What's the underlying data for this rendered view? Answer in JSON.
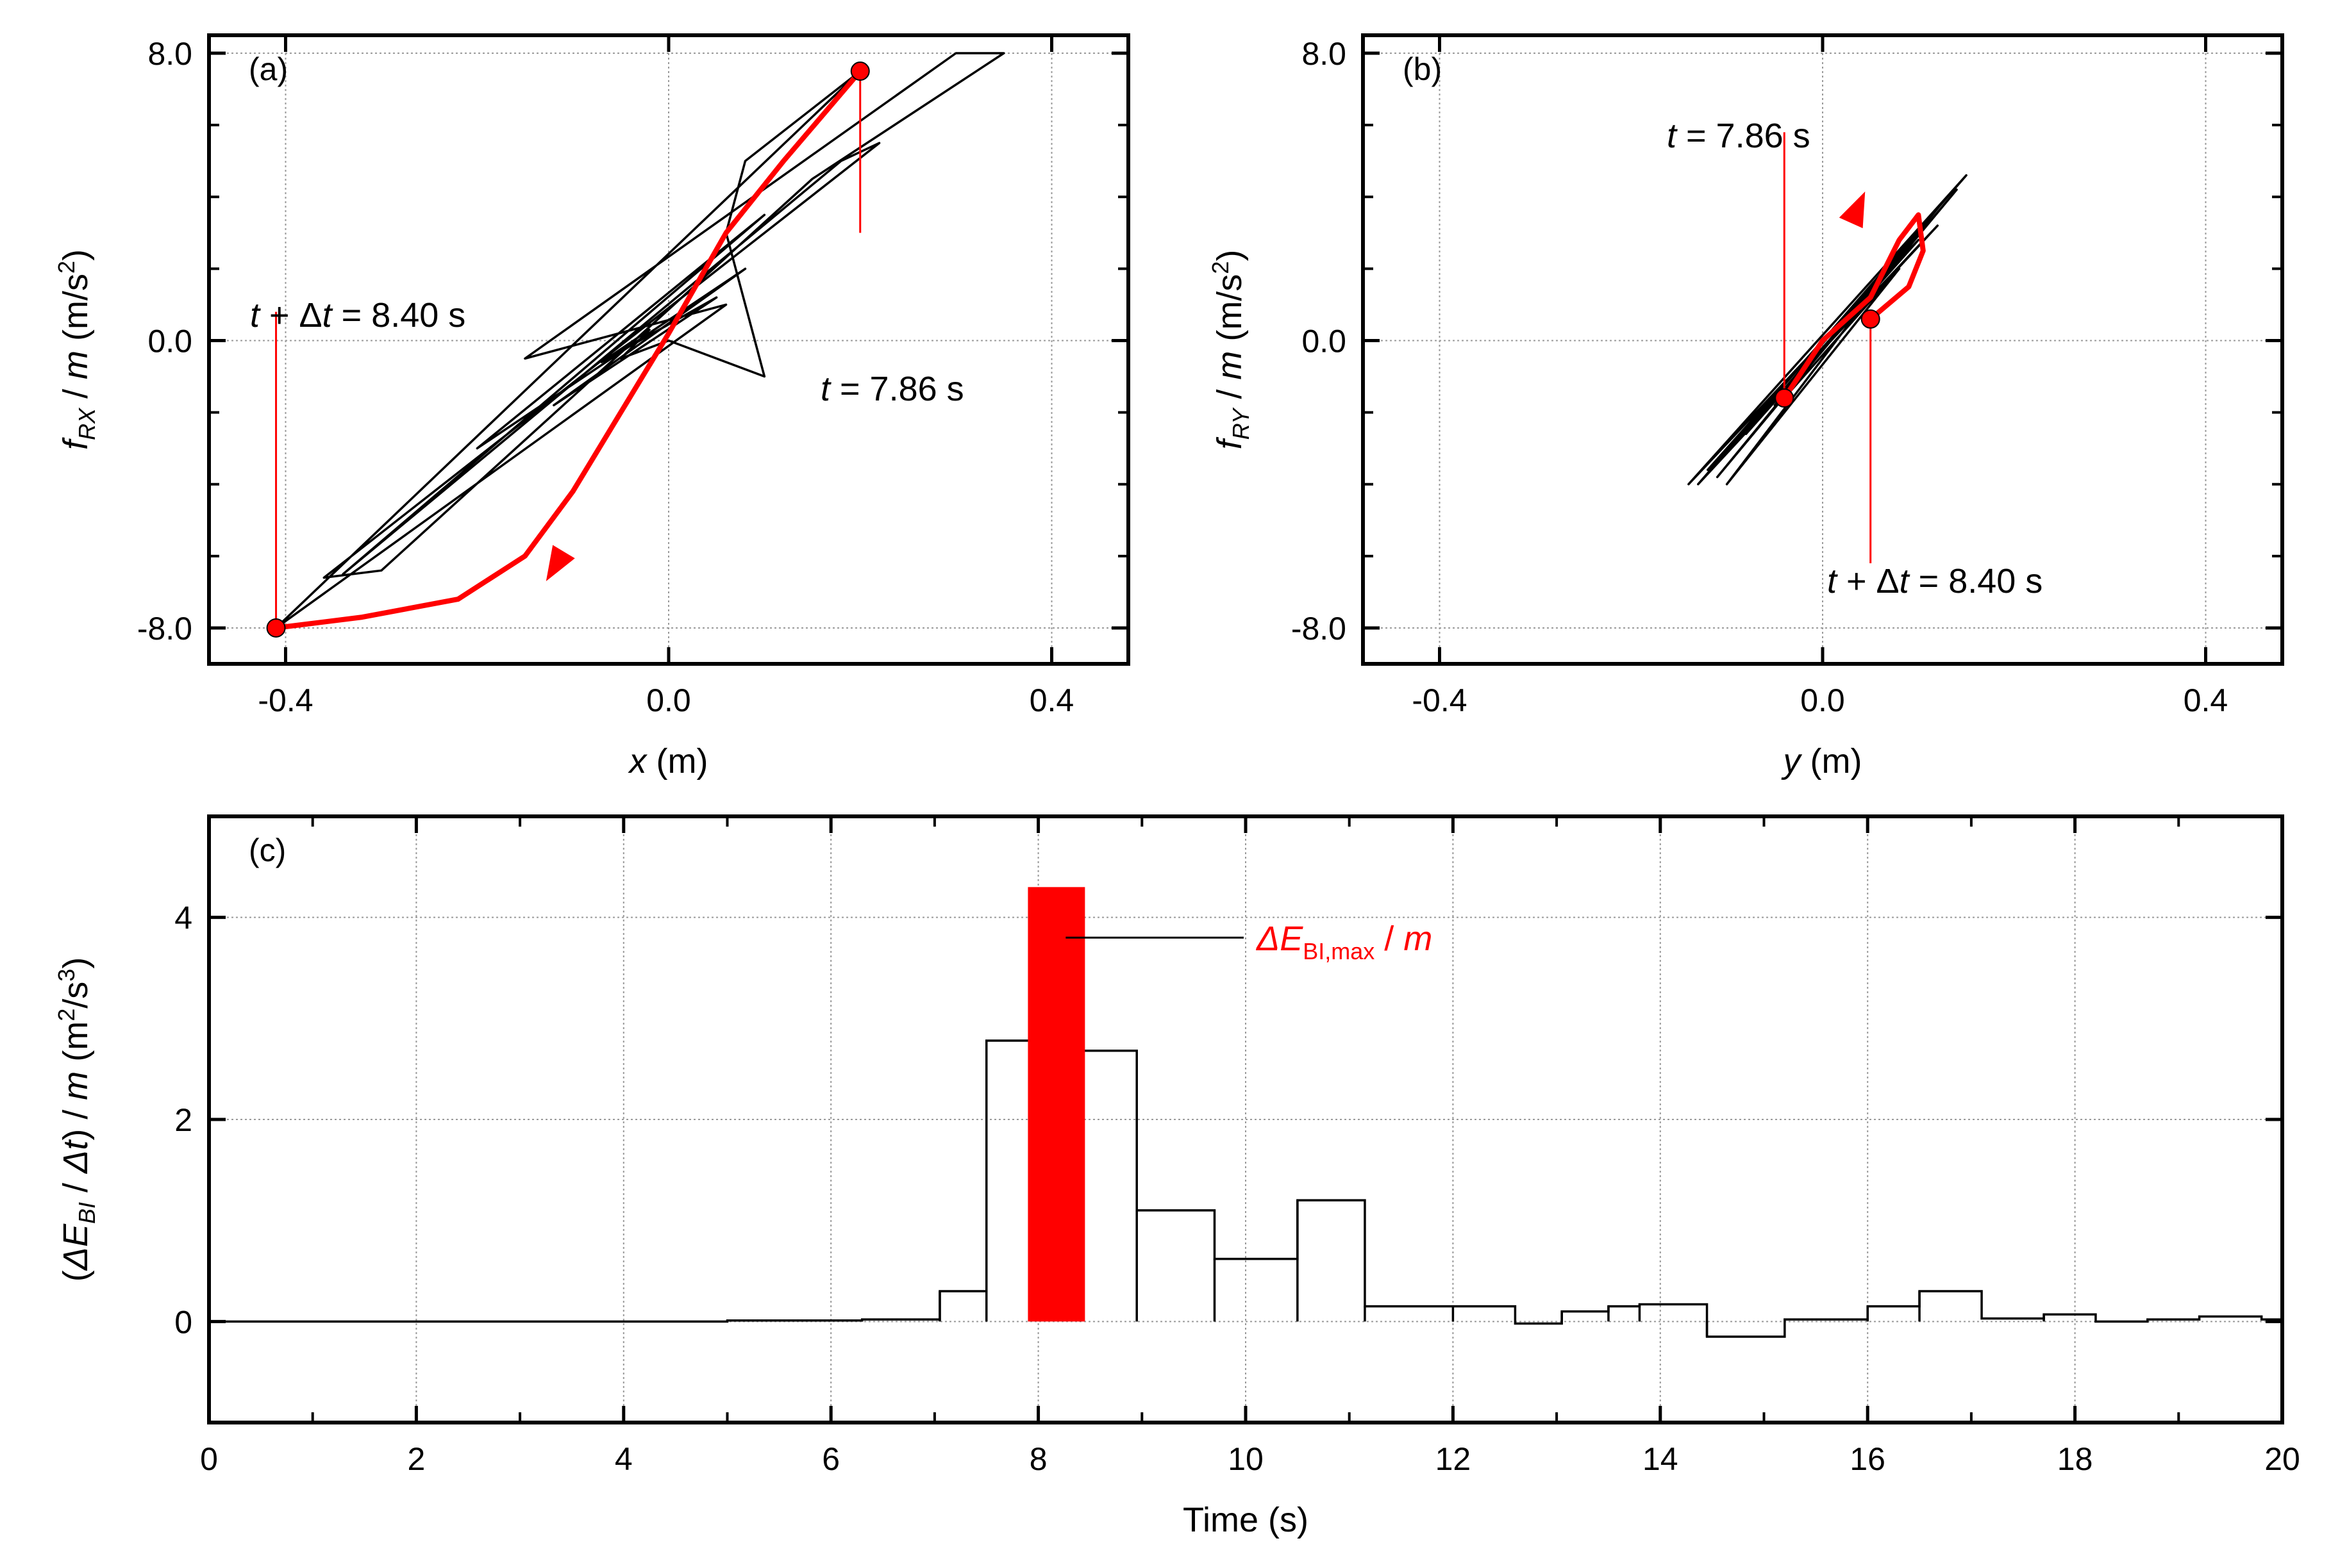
{
  "figure": {
    "panels": [
      "a",
      "b",
      "c"
    ]
  },
  "chart_data": [
    {
      "id": "a",
      "type": "line",
      "panel_label": "(a)",
      "xlabel": {
        "var": "x",
        "unit": " (m)"
      },
      "ylabel": {
        "var": "f",
        "sub": "RX",
        "mid": " / ",
        "var2": "m",
        "unit": " (m/s",
        "sup": "2",
        "end": ")"
      },
      "xlim": [
        -0.48,
        0.48
      ],
      "ylim": [
        -9.0,
        8.5
      ],
      "xticks": [
        -0.4,
        0.0,
        0.4
      ],
      "xtick_labels": [
        "-0.4",
        "0.0",
        "0.4"
      ],
      "yticks": [
        -8.0,
        0.0,
        8.0
      ],
      "ytick_labels": [
        "-8.0",
        "0.0",
        "8.0"
      ],
      "minor_yticks": [
        -6,
        -4,
        -2,
        2,
        4,
        6
      ],
      "grid": true,
      "series": [
        {
          "name": "hysteresis",
          "color": "#000000",
          "points": [
            [
              0.0,
              0.0
            ],
            [
              -0.05,
              -0.5
            ],
            [
              -0.02,
              0.3
            ],
            [
              -0.07,
              -0.6
            ],
            [
              0.05,
              1.2
            ],
            [
              -0.12,
              -1.8
            ],
            [
              0.08,
              2.0
            ],
            [
              -0.2,
              -3.0
            ],
            [
              0.1,
              3.5
            ],
            [
              -0.34,
              -6.5
            ],
            [
              0.18,
              5.0
            ],
            [
              0.22,
              5.5
            ],
            [
              -0.36,
              -6.6
            ],
            [
              -0.3,
              -6.4
            ],
            [
              0.15,
              4.5
            ],
            [
              0.35,
              8.0
            ],
            [
              0.3,
              8.0
            ],
            [
              -0.15,
              -0.5
            ],
            [
              0.06,
              1.0
            ],
            [
              -0.41,
              -8.0
            ],
            [
              0.2,
              7.5
            ],
            [
              0.08,
              5.0
            ],
            [
              0.06,
              3.0
            ],
            [
              0.1,
              -1.0
            ],
            [
              0.0,
              0.0
            ]
          ]
        },
        {
          "name": "highlight",
          "color": "#ff0000",
          "points": [
            [
              0.2,
              7.5
            ],
            [
              0.12,
              5.0
            ],
            [
              0.06,
              3.0
            ],
            [
              0.0,
              0.2
            ],
            [
              -0.05,
              -2.0
            ],
            [
              -0.1,
              -4.2
            ],
            [
              -0.15,
              -6.0
            ],
            [
              -0.22,
              -7.2
            ],
            [
              -0.32,
              -7.7
            ],
            [
              -0.41,
              -8.0
            ]
          ],
          "arrow_at": [
            -0.11,
            -5.9
          ]
        }
      ],
      "markers": [
        [
          0.2,
          7.5
        ],
        [
          -0.41,
          -8.0
        ]
      ],
      "annotations": [
        {
          "text": "t = 7.86 s",
          "italic": "t",
          "rest": " = 7.86 s",
          "line_x": 0.2,
          "line_y": [
            7.5,
            3.0
          ]
        },
        {
          "text": "t + Δt = 8.40 s",
          "italic": "t",
          "mid": " + Δ",
          "italic2": "t",
          "rest": " = 8.40 s",
          "line_x": -0.41,
          "line_y": [
            -8.0,
            0.8
          ]
        }
      ]
    },
    {
      "id": "b",
      "type": "line",
      "panel_label": "(b)",
      "xlabel": {
        "var": "y",
        "unit": " (m)"
      },
      "ylabel": {
        "var": "f",
        "sub": "RY",
        "mid": " / ",
        "var2": "m",
        "unit": " (m/s",
        "sup": "2",
        "end": ")"
      },
      "xlim": [
        -0.48,
        0.48
      ],
      "ylim": [
        -9.0,
        8.5
      ],
      "xticks": [
        -0.4,
        0.0,
        0.4
      ],
      "xtick_labels": [
        "-0.4",
        "0.0",
        "0.4"
      ],
      "yticks": [
        -8.0,
        0.0,
        8.0
      ],
      "ytick_labels": [
        "-8.0",
        "0.0",
        "8.0"
      ],
      "minor_yticks": [
        -6,
        -4,
        -2,
        2,
        4,
        6
      ],
      "grid": true,
      "series": [
        {
          "name": "hysteresis",
          "color": "#000000",
          "points": [
            [
              0.0,
              0.0
            ],
            [
              -0.1,
              -3.0
            ],
            [
              0.1,
              3.0
            ],
            [
              -0.12,
              -3.6
            ],
            [
              0.12,
              3.2
            ],
            [
              -0.13,
              -4.0
            ],
            [
              0.15,
              4.6
            ],
            [
              -0.14,
              -4.0
            ],
            [
              0.1,
              2.8
            ],
            [
              -0.08,
              -2.6
            ],
            [
              0.13,
              4.0
            ],
            [
              -0.11,
              -3.8
            ],
            [
              0.14,
              4.2
            ],
            [
              -0.05,
              -1.8
            ],
            [
              0.06,
              1.6
            ],
            [
              -0.1,
              -4.0
            ],
            [
              0.08,
              2.0
            ],
            [
              -0.04,
              -1.6
            ],
            [
              0.0,
              0.0
            ]
          ]
        },
        {
          "name": "highlight",
          "color": "#ff0000",
          "points": [
            [
              -0.04,
              -1.6
            ],
            [
              0.0,
              0.0
            ],
            [
              0.05,
              1.2
            ],
            [
              0.08,
              2.8
            ],
            [
              0.1,
              3.5
            ],
            [
              0.105,
              2.5
            ],
            [
              0.09,
              1.5
            ],
            [
              0.05,
              0.6
            ]
          ],
          "arrow_at": [
            0.03,
            3.3
          ]
        }
      ],
      "markers": [
        [
          -0.04,
          -1.6
        ],
        [
          0.05,
          0.6
        ]
      ],
      "annotations": [
        {
          "text": "t = 7.86 s",
          "italic": "t",
          "rest": " = 7.86 s",
          "line_x": -0.04,
          "line_y": [
            -1.6,
            5.8
          ]
        },
        {
          "text": "t + Δt = 8.40 s",
          "italic": "t",
          "mid": " + Δ",
          "italic2": "t",
          "rest": " = 8.40 s",
          "line_x": 0.05,
          "line_y": [
            0.6,
            -6.2
          ]
        }
      ]
    },
    {
      "id": "c",
      "type": "bar",
      "panel_label": "(c)",
      "xlabel": {
        "text": "Time  (s)"
      },
      "ylabel": {
        "pre": "(",
        "delta": "Δ",
        "var": "E",
        "sub": "BI",
        "mid": " / ",
        "delta2": "Δ",
        "var2": "t",
        "close": ") / ",
        "var3": "m",
        "unit": "  (m",
        "sup": "2",
        "mid2": "/s",
        "sup2": "3",
        "end": ")"
      },
      "xlim": [
        0,
        20
      ],
      "ylim": [
        -1.0,
        5.0
      ],
      "xticks": [
        0,
        2,
        4,
        6,
        8,
        10,
        12,
        14,
        16,
        18,
        20
      ],
      "xtick_labels": [
        "0",
        "2",
        "4",
        "6",
        "8",
        "10",
        "12",
        "14",
        "16",
        "18",
        "20"
      ],
      "yticks": [
        0,
        2,
        4
      ],
      "ytick_labels": [
        "0",
        "2",
        "4"
      ],
      "grid": true,
      "bins": [
        [
          0.0,
          0.0
        ],
        [
          5.0,
          0.01
        ],
        [
          6.3,
          0.02
        ],
        [
          7.05,
          0.3
        ],
        [
          7.5,
          2.78
        ],
        [
          8.4,
          2.68
        ],
        [
          8.95,
          1.1
        ],
        [
          9.7,
          0.62
        ],
        [
          10.5,
          1.2
        ],
        [
          11.15,
          0.15
        ],
        [
          12.0,
          0.15
        ],
        [
          12.6,
          -0.02
        ],
        [
          13.05,
          0.1
        ],
        [
          13.5,
          0.15
        ],
        [
          13.8,
          0.17
        ],
        [
          14.45,
          -0.15
        ],
        [
          15.2,
          0.02
        ],
        [
          15.7,
          0.02
        ],
        [
          16.0,
          0.15
        ],
        [
          16.5,
          0.3
        ],
        [
          17.1,
          0.03
        ],
        [
          17.7,
          0.07
        ],
        [
          18.2,
          0.0
        ],
        [
          18.7,
          0.02
        ],
        [
          19.2,
          0.05
        ],
        [
          19.8,
          0.02
        ],
        [
          20.0,
          0.0
        ]
      ],
      "highlight_bar": {
        "x0": 7.9,
        "x1": 8.45,
        "value": 4.3,
        "color": "#ff0000"
      },
      "annotation": {
        "delta": "Δ",
        "var": "E",
        "sub": "BI,max",
        "mid": "  /  ",
        "var2": "m",
        "color": "#ff0000",
        "line_y": 3.8
      }
    }
  ]
}
